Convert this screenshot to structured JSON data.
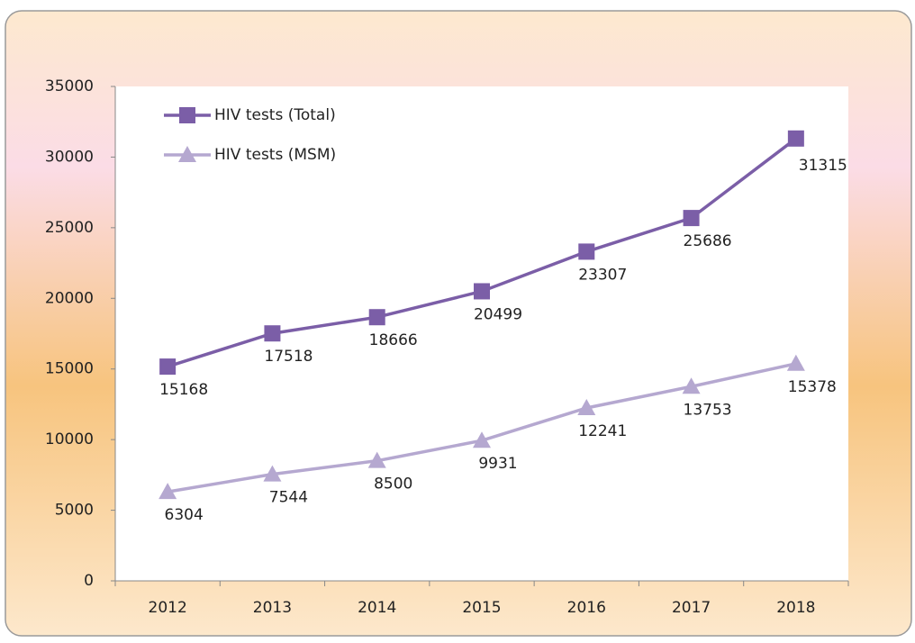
{
  "chart_data": {
    "type": "line",
    "categories": [
      "2012",
      "2013",
      "2014",
      "2015",
      "2016",
      "2017",
      "2018"
    ],
    "series": [
      {
        "name": "HIV tests (Total)",
        "color": "#7b5ea7",
        "marker": "square",
        "values": [
          15168,
          17518,
          18666,
          20499,
          23307,
          25686,
          31315
        ]
      },
      {
        "name": "HIV tests (MSM)",
        "color": "#b5a8d0",
        "marker": "triangle",
        "values": [
          6304,
          7544,
          8500,
          9931,
          12241,
          13753,
          15378
        ]
      }
    ],
    "ylim": [
      0,
      35000
    ],
    "yticks": [
      0,
      5000,
      10000,
      15000,
      20000,
      25000,
      30000,
      35000
    ],
    "grid": false,
    "legend": "top-left"
  }
}
